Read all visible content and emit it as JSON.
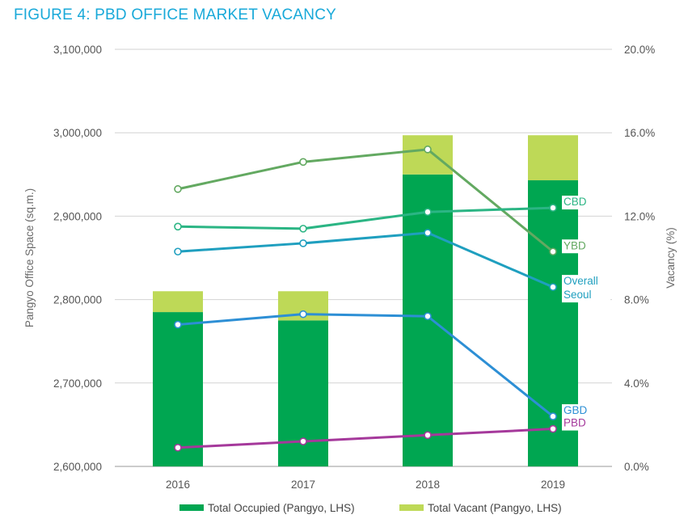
{
  "title": "FIGURE 4: PBD OFFICE MARKET VACANCY",
  "chart_data": {
    "type": "bar+line",
    "title": "FIGURE 4: PBD OFFICE MARKET VACANCY",
    "categories": [
      "2016",
      "2017",
      "2018",
      "2019"
    ],
    "left_axis": {
      "label": "Pangyo Office Space (sq.m.)",
      "range": [
        2600000,
        3100000
      ],
      "ticks": [
        2600000,
        2700000,
        2800000,
        2900000,
        3000000,
        3100000
      ],
      "tick_labels": [
        "2,600,000",
        "2,700,000",
        "2,800,000",
        "2,900,000",
        "3,000,000",
        "3,100,000"
      ]
    },
    "right_axis": {
      "label": "Vacancy (%)",
      "range": [
        0,
        20
      ],
      "ticks": [
        0,
        4,
        8,
        12,
        16,
        20
      ],
      "tick_labels": [
        "0.0%",
        "4.0%",
        "8.0%",
        "12.0%",
        "16.0%",
        "20.0%"
      ]
    },
    "bar_series": [
      {
        "name": "Total Occupied (Pangyo, LHS)",
        "color": "#00a651",
        "values": [
          2785000,
          2775000,
          2950000,
          2943000
        ]
      },
      {
        "name": "Total Vacant (Pangyo, LHS)",
        "color": "#bed957",
        "values": [
          25000,
          35000,
          47000,
          54000
        ]
      }
    ],
    "line_series": [
      {
        "name": "YBD",
        "color": "#63a961",
        "values": [
          13.3,
          14.6,
          15.2,
          10.3
        ]
      },
      {
        "name": "CBD",
        "color": "#2bb584",
        "values": [
          11.5,
          11.4,
          12.2,
          12.4
        ]
      },
      {
        "name": "Overall Seoul",
        "color": "#1f9fbf",
        "label_lines": [
          "Overall",
          "Seoul"
        ],
        "values": [
          10.3,
          10.7,
          11.2,
          8.6
        ]
      },
      {
        "name": "GBD",
        "color": "#2d8fd5",
        "values": [
          6.8,
          7.3,
          7.2,
          2.4
        ]
      },
      {
        "name": "PBD",
        "color": "#a5399b",
        "values": [
          0.9,
          1.2,
          1.5,
          1.8
        ]
      }
    ],
    "legend": {
      "position": "bottom"
    }
  }
}
